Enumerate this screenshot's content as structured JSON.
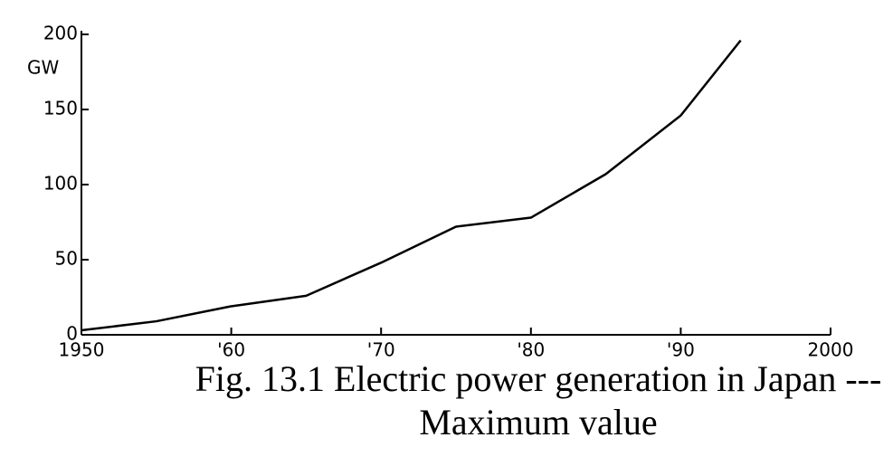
{
  "chart_data": {
    "type": "line",
    "title": "Fig. 13.1 Electric power generation in Japan --- Maximum value",
    "y_label": "GW",
    "x": [
      1950,
      1955,
      1960,
      1965,
      1970,
      1975,
      1980,
      1985,
      1990,
      1994
    ],
    "series": [
      {
        "name": "Electric power generation",
        "color": "#000000",
        "values": [
          3,
          9,
          19,
          26,
          48,
          72,
          78,
          107,
          146,
          196
        ]
      }
    ],
    "xlim": [
      1950,
      2000
    ],
    "xticks": [
      {
        "value": 1950,
        "label": "1950"
      },
      {
        "value": 1960,
        "label": "'60"
      },
      {
        "value": 1970,
        "label": "'70"
      },
      {
        "value": 1980,
        "label": "'80"
      },
      {
        "value": 1990,
        "label": "'90"
      },
      {
        "value": 2000,
        "label": "2000"
      }
    ],
    "ylim": [
      0,
      200
    ],
    "yticks": [
      0,
      50,
      100,
      150,
      200
    ],
    "grid": false
  }
}
